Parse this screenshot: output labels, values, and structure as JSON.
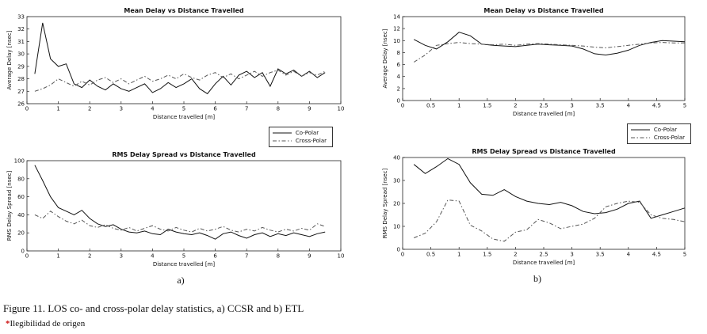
{
  "figure": {
    "caption": "Figure 11. LOS co- and cross-polar delay statistics, a) CCSR and b) ETL",
    "footnote_marker": "*",
    "footnote": "Ilegibilidad de origen",
    "footnote_marker_color": "#cc1111",
    "label_a": "a)",
    "label_b": "b)"
  },
  "legend": {
    "entries": [
      {
        "label": "Co-Polar",
        "style": "solid",
        "color": "#111111"
      },
      {
        "label": "Cross-Polar",
        "style": "dashdot",
        "color": "#555555"
      }
    ]
  },
  "chart_data": [
    {
      "type": "line",
      "panel": "a-ccsr-mean-delay",
      "title": "Mean Delay vs Distance Travelled",
      "xlabel": "Distance travelled [m]",
      "ylabel": "Average Delay [nsec]",
      "xlim": [
        0,
        10
      ],
      "ylim": [
        26,
        33
      ],
      "xticks": [
        0,
        1,
        2,
        3,
        4,
        5,
        6,
        7,
        8,
        9,
        10
      ],
      "yticks": [
        26,
        27,
        28,
        29,
        30,
        31,
        32,
        33
      ],
      "grid": false,
      "x": [
        0.25,
        0.5,
        0.75,
        1,
        1.25,
        1.5,
        1.75,
        2,
        2.25,
        2.5,
        2.75,
        3,
        3.25,
        3.5,
        3.75,
        4,
        4.25,
        4.5,
        4.75,
        5,
        5.25,
        5.5,
        5.75,
        6,
        6.25,
        6.5,
        6.75,
        7,
        7.25,
        7.5,
        7.75,
        8,
        8.25,
        8.5,
        8.75,
        9,
        9.25,
        9.5
      ],
      "series": [
        {
          "name": "Co-Polar",
          "style": "solid",
          "values": [
            28.4,
            32.5,
            29.6,
            29.0,
            29.2,
            27.6,
            27.3,
            27.9,
            27.4,
            27.1,
            27.6,
            27.2,
            27.0,
            27.3,
            27.6,
            26.9,
            27.2,
            27.7,
            27.3,
            27.6,
            28.0,
            27.2,
            26.8,
            27.6,
            28.2,
            27.5,
            28.3,
            28.6,
            28.1,
            28.5,
            27.4,
            28.8,
            28.4,
            28.7,
            28.2,
            28.6,
            28.1,
            28.5
          ]
        },
        {
          "name": "Cross-Polar",
          "style": "dashdot",
          "values": [
            27.0,
            27.2,
            27.5,
            28.0,
            27.7,
            27.4,
            27.8,
            27.5,
            27.9,
            28.1,
            27.7,
            28.0,
            27.6,
            27.9,
            28.2,
            27.8,
            28.0,
            28.3,
            28.0,
            28.4,
            28.1,
            27.9,
            28.3,
            28.5,
            28.1,
            28.4,
            28.0,
            28.3,
            28.6,
            28.2,
            28.5,
            28.7,
            28.3,
            28.6,
            28.2,
            28.5,
            28.3,
            28.6
          ]
        }
      ]
    },
    {
      "type": "line",
      "panel": "a-ccsr-rms-delay-spread",
      "title": "RMS Delay Spread vs Distance Travelled",
      "xlabel": "Distance travelled [m]",
      "ylabel": "RMS Delay Spread [nsec]",
      "xlim": [
        0,
        10
      ],
      "ylim": [
        0,
        100
      ],
      "xticks": [
        0,
        1,
        2,
        3,
        4,
        5,
        6,
        7,
        8,
        9,
        10
      ],
      "yticks": [
        0,
        20,
        40,
        60,
        80,
        100
      ],
      "grid": false,
      "x": [
        0.25,
        0.5,
        0.75,
        1,
        1.25,
        1.5,
        1.75,
        2,
        2.25,
        2.5,
        2.75,
        3,
        3.25,
        3.5,
        3.75,
        4,
        4.25,
        4.5,
        4.75,
        5,
        5.25,
        5.5,
        5.75,
        6,
        6.25,
        6.5,
        6.75,
        7,
        7.25,
        7.5,
        7.75,
        8,
        8.25,
        8.5,
        8.75,
        9,
        9.25,
        9.5
      ],
      "series": [
        {
          "name": "Co-Polar",
          "style": "solid",
          "values": [
            95,
            78,
            60,
            48,
            44,
            40,
            45,
            36,
            30,
            27,
            29,
            24,
            21,
            20,
            22,
            19,
            18,
            24,
            21,
            19,
            18,
            20,
            17,
            13,
            19,
            21,
            17,
            14,
            18,
            20,
            16,
            19,
            17,
            20,
            18,
            16,
            19,
            21
          ]
        },
        {
          "name": "Cross-Polar",
          "style": "dashdot",
          "values": [
            40,
            36,
            44,
            38,
            33,
            30,
            34,
            28,
            26,
            29,
            25,
            23,
            26,
            22,
            25,
            28,
            24,
            22,
            26,
            23,
            21,
            25,
            22,
            24,
            27,
            23,
            21,
            24,
            22,
            26,
            23,
            21,
            24,
            22,
            25,
            23,
            30,
            27
          ]
        }
      ]
    },
    {
      "type": "line",
      "panel": "b-etl-mean-delay",
      "title": "Mean Delay vs Distance Travelled",
      "xlabel": "Distance travelled [m]",
      "ylabel": "Average Delay [nsec]",
      "xlim": [
        0,
        5
      ],
      "ylim": [
        0,
        14
      ],
      "xticks": [
        0,
        0.5,
        1,
        1.5,
        2,
        2.5,
        3,
        3.5,
        4,
        4.5,
        5
      ],
      "yticks": [
        0,
        2,
        4,
        6,
        8,
        10,
        12,
        14
      ],
      "grid": false,
      "x": [
        0.2,
        0.4,
        0.6,
        0.8,
        1.0,
        1.2,
        1.4,
        1.6,
        1.8,
        2.0,
        2.2,
        2.4,
        2.6,
        2.8,
        3.0,
        3.2,
        3.4,
        3.6,
        3.8,
        4.0,
        4.2,
        4.4,
        4.6,
        4.8,
        5.0
      ],
      "series": [
        {
          "name": "Co-Polar",
          "style": "solid",
          "values": [
            10.2,
            9.2,
            8.6,
            9.8,
            11.4,
            10.8,
            9.4,
            9.2,
            9.1,
            9.0,
            9.2,
            9.4,
            9.3,
            9.2,
            9.1,
            8.6,
            7.8,
            7.6,
            7.9,
            8.4,
            9.2,
            9.7,
            10.0,
            9.9,
            9.8
          ]
        },
        {
          "name": "Cross-Polar",
          "style": "dashdot",
          "values": [
            6.4,
            7.6,
            9.2,
            9.5,
            9.7,
            9.5,
            9.4,
            9.3,
            9.4,
            9.2,
            9.4,
            9.5,
            9.4,
            9.3,
            9.2,
            9.1,
            8.9,
            8.8,
            9.0,
            9.2,
            9.4,
            9.6,
            9.7,
            9.6,
            9.6
          ]
        }
      ]
    },
    {
      "type": "line",
      "panel": "b-etl-rms-delay-spread",
      "title": "RMS Delay Spread vs Distance Travelled",
      "xlabel": "Distance travelled [m]",
      "ylabel": "RMS Delay Spread [nsec]",
      "xlim": [
        0,
        5
      ],
      "ylim": [
        0,
        40
      ],
      "xticks": [
        0,
        0.5,
        1,
        1.5,
        2,
        2.5,
        3,
        3.5,
        4,
        4.5,
        5
      ],
      "yticks": [
        0,
        10,
        20,
        30,
        40
      ],
      "grid": false,
      "x": [
        0.2,
        0.4,
        0.6,
        0.8,
        1.0,
        1.2,
        1.4,
        1.6,
        1.8,
        2.0,
        2.2,
        2.4,
        2.6,
        2.8,
        3.0,
        3.2,
        3.4,
        3.6,
        3.8,
        4.0,
        4.2,
        4.4,
        4.6,
        4.8,
        5.0
      ],
      "series": [
        {
          "name": "Co-Polar",
          "style": "solid",
          "values": [
            37,
            33,
            36,
            39.5,
            37,
            29,
            24,
            23.5,
            26,
            23,
            21,
            20,
            19.5,
            20.5,
            19,
            16.5,
            15.5,
            16,
            17.5,
            20,
            21,
            13.5,
            15,
            16.5,
            18
          ]
        },
        {
          "name": "Cross-Polar",
          "style": "dashdot",
          "values": [
            5,
            7,
            12,
            21.5,
            21,
            10.5,
            8,
            4.5,
            3.5,
            7.5,
            8.5,
            13,
            11.5,
            9,
            10,
            11,
            13.5,
            18.5,
            20,
            21,
            20.5,
            15,
            13.5,
            13,
            12
          ]
        }
      ]
    }
  ]
}
